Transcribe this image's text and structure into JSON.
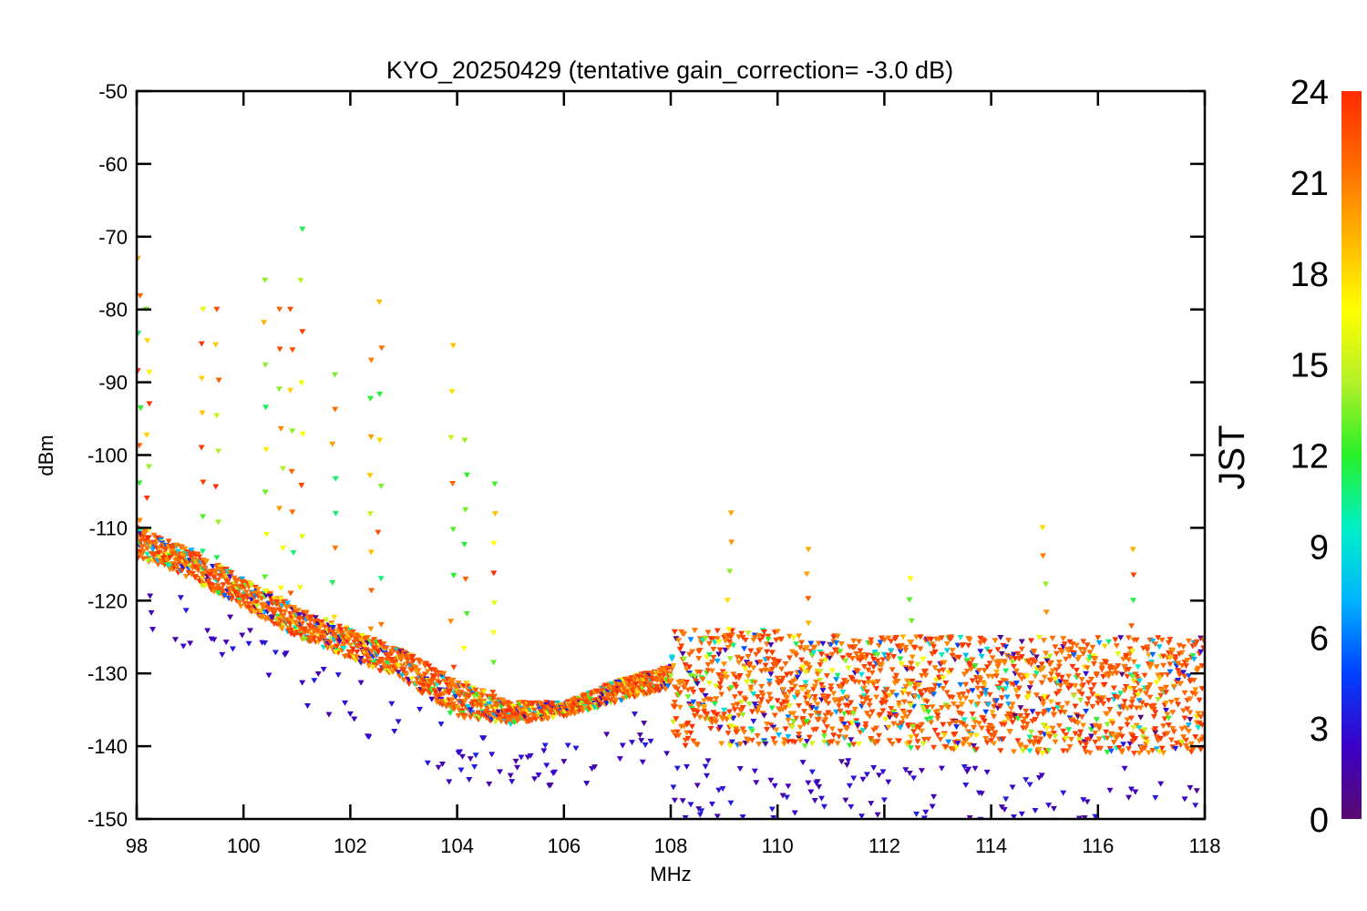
{
  "chart_data": {
    "type": "scatter",
    "title": "KYO_20250429 (tentative gain_correction= -3.0 dB)",
    "xlabel": "MHz",
    "ylabel": "dBm",
    "xlim": [
      98,
      118
    ],
    "ylim": [
      -150,
      -50
    ],
    "x_ticks": [
      "98",
      "100",
      "102",
      "104",
      "106",
      "108",
      "110",
      "112",
      "114",
      "116",
      "118"
    ],
    "y_ticks": [
      "-50",
      "-60",
      "-70",
      "-80",
      "-90",
      "-100",
      "-110",
      "-120",
      "-130",
      "-140",
      "-150"
    ],
    "grid": false,
    "color_dimension": {
      "label": "JST",
      "range": [
        0,
        24
      ],
      "ticks": [
        "0",
        "3",
        "6",
        "9",
        "12",
        "15",
        "18",
        "21",
        "24"
      ],
      "colormap": [
        "#5a0a6e",
        "#3c00c8",
        "#0040ff",
        "#00b4ff",
        "#00f0c8",
        "#28f028",
        "#b4f028",
        "#ffff00",
        "#ffb400",
        "#ff6a00",
        "#ff2a00"
      ]
    },
    "noise_floor_by_frequency": {
      "x": [
        98,
        99,
        100,
        101,
        102,
        103,
        104,
        105,
        106,
        107,
        108,
        108.01,
        110,
        112,
        114,
        116,
        118
      ],
      "floor_top": [
        -110,
        -113,
        -117,
        -121,
        -124,
        -127,
        -131,
        -134,
        -134,
        -131,
        -129,
        -124,
        -124,
        -125,
        -125,
        -125,
        -125
      ],
      "floor_bottom": [
        -114,
        -117,
        -121,
        -125,
        -128,
        -131,
        -136,
        -137,
        -136,
        -134,
        -132,
        -140,
        -140,
        -140,
        -141,
        -141,
        -141
      ]
    },
    "peaks": [
      {
        "x": 98.05,
        "y": -73
      },
      {
        "x": 98.2,
        "y": -80
      },
      {
        "x": 99.25,
        "y": -80
      },
      {
        "x": 99.5,
        "y": -80
      },
      {
        "x": 100.4,
        "y": -76
      },
      {
        "x": 100.7,
        "y": -80
      },
      {
        "x": 100.9,
        "y": -80
      },
      {
        "x": 101.1,
        "y": -69
      },
      {
        "x": 101.7,
        "y": -89
      },
      {
        "x": 102.4,
        "y": -87
      },
      {
        "x": 102.55,
        "y": -79
      },
      {
        "x": 103.9,
        "y": -85
      },
      {
        "x": 104.15,
        "y": -98
      },
      {
        "x": 104.7,
        "y": -104
      },
      {
        "x": 109.1,
        "y": -108
      },
      {
        "x": 110.55,
        "y": -113
      },
      {
        "x": 112.5,
        "y": -117
      },
      {
        "x": 115.0,
        "y": -110
      },
      {
        "x": 116.65,
        "y": -113
      }
    ]
  }
}
